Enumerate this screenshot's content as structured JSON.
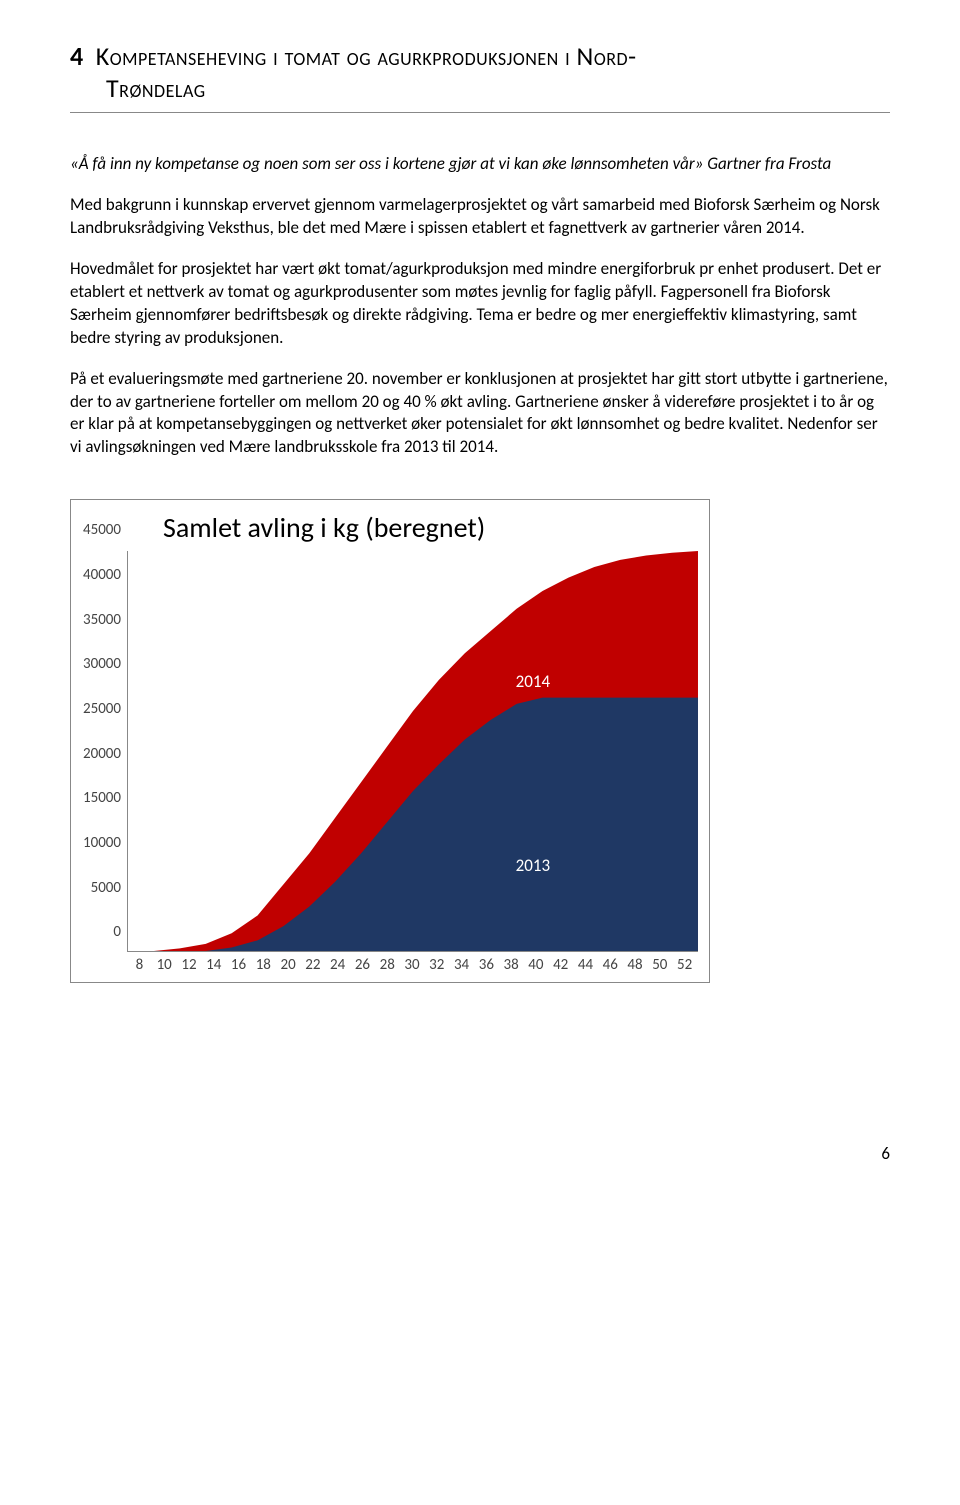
{
  "heading": {
    "number": "4",
    "line1": "Kompetanseheving i tomat og agurkproduksjonen i Nord-",
    "line2": "Trøndelag"
  },
  "quote": "«Å få inn ny kompetanse og noen som ser oss i kortene gjør at vi kan øke lønnsomheten vår» Gartner fra Frosta",
  "p1": "Med bakgrunn i kunnskap ervervet gjennom varmelagerprosjektet og vårt samarbeid med Bioforsk Særheim og Norsk Landbruksrådgiving Veksthus, ble det med Mære i spissen etablert et fagnettverk av gartnerier våren 2014.",
  "p2": "Hovedmålet for prosjektet har vært økt tomat/agurkproduksjon med mindre energiforbruk pr enhet produsert. Det er etablert et nettverk av tomat og agurkprodusenter som møtes jevnlig for faglig påfyll. Fagpersonell fra Bioforsk Særheim gjennomfører bedriftsbesøk og direkte rådgiving. Tema er bedre og mer energieffektiv klimastyring, samt bedre styring av produksjonen.",
  "p3": "På et evalueringsmøte med gartneriene 20. november er konklusjonen at prosjektet har gitt stort utbytte i gartneriene, der to av gartneriene forteller om mellom 20 og 40 % økt avling. Gartneriene ønsker å videreføre prosjektet i to år og er klar på at kompetansebyggingen og nettverket øker potensialet for økt lønnsomhet og bedre kvalitet. Nedenfor ser vi avlingsøkningen ved Mære landbruksskole fra 2013 til 2014.",
  "chart": {
    "type": "area",
    "title": "Samlet avling i kg (beregnet)",
    "ylim": [
      0,
      45000
    ],
    "ytick_step": 5000,
    "y_ticks": [
      "45000",
      "40000",
      "35000",
      "30000",
      "25000",
      "20000",
      "15000",
      "10000",
      "5000",
      "0"
    ],
    "x_ticks": [
      "8",
      "10",
      "12",
      "14",
      "16",
      "18",
      "20",
      "22",
      "24",
      "26",
      "28",
      "30",
      "32",
      "34",
      "36",
      "38",
      "40",
      "42",
      "44",
      "46",
      "48",
      "50",
      "52"
    ],
    "x_min": 8,
    "x_max": 52,
    "series": [
      {
        "name": "2014",
        "color": "#c00000",
        "label_pos": {
          "x_pct": 68,
          "y_pct": 30
        },
        "points": [
          [
            8,
            0
          ],
          [
            10,
            0
          ],
          [
            12,
            300
          ],
          [
            14,
            800
          ],
          [
            16,
            2000
          ],
          [
            18,
            4000
          ],
          [
            20,
            7500
          ],
          [
            22,
            11000
          ],
          [
            24,
            15000
          ],
          [
            26,
            19000
          ],
          [
            28,
            23000
          ],
          [
            30,
            27000
          ],
          [
            32,
            30500
          ],
          [
            34,
            33500
          ],
          [
            36,
            36000
          ],
          [
            38,
            38500
          ],
          [
            40,
            40500
          ],
          [
            42,
            42000
          ],
          [
            44,
            43200
          ],
          [
            46,
            44000
          ],
          [
            48,
            44500
          ],
          [
            50,
            44800
          ],
          [
            52,
            45000
          ]
        ]
      },
      {
        "name": "2013",
        "color": "#1f3864",
        "label_pos": {
          "x_pct": 68,
          "y_pct": 76
        },
        "points": [
          [
            8,
            0
          ],
          [
            10,
            0
          ],
          [
            12,
            0
          ],
          [
            14,
            0
          ],
          [
            16,
            400
          ],
          [
            18,
            1200
          ],
          [
            20,
            2800
          ],
          [
            22,
            5000
          ],
          [
            24,
            7800
          ],
          [
            26,
            11000
          ],
          [
            28,
            14500
          ],
          [
            30,
            18000
          ],
          [
            32,
            21000
          ],
          [
            34,
            23800
          ],
          [
            36,
            26000
          ],
          [
            38,
            27800
          ],
          [
            40,
            28500
          ],
          [
            42,
            28500
          ],
          [
            44,
            28500
          ],
          [
            46,
            28500
          ],
          [
            48,
            28500
          ],
          [
            50,
            28500
          ],
          [
            52,
            28500
          ]
        ]
      }
    ],
    "border_color": "#888888",
    "background_color": "#ffffff"
  },
  "page_number": "6"
}
